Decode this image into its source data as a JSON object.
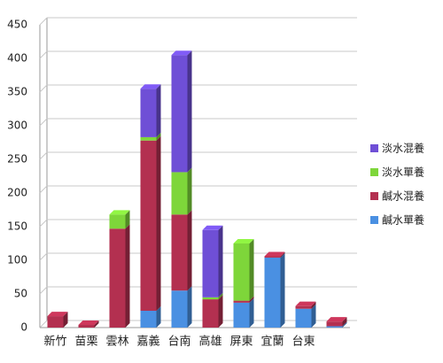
{
  "chart_data": {
    "type": "bar",
    "stacked": true,
    "categories": [
      "新竹",
      "苗栗",
      "雲林",
      "嘉義",
      "台南",
      "高雄",
      "屏東",
      "宜蘭",
      "台東",
      null
    ],
    "series": [
      {
        "name": "鹹水單養",
        "color": "#4a90e2",
        "values": [
          0,
          0,
          0,
          25,
          55,
          0,
          37,
          104,
          28,
          2
        ]
      },
      {
        "name": "鹹水混養",
        "color": "#b33050",
        "values": [
          17,
          4,
          147,
          253,
          113,
          42,
          3,
          2,
          4,
          7
        ]
      },
      {
        "name": "淡水單養",
        "color": "#7ed63a",
        "values": [
          0,
          0,
          21,
          5,
          63,
          3,
          85,
          0,
          0,
          0
        ]
      },
      {
        "name": "淡水混養",
        "color": "#6f4fd6",
        "values": [
          0,
          0,
          0,
          72,
          174,
          100,
          0,
          0,
          0,
          0
        ]
      }
    ],
    "ylim": [
      0,
      450
    ],
    "yticks": [
      0,
      50,
      100,
      150,
      200,
      250,
      300,
      350,
      400,
      450
    ],
    "grid": true
  }
}
